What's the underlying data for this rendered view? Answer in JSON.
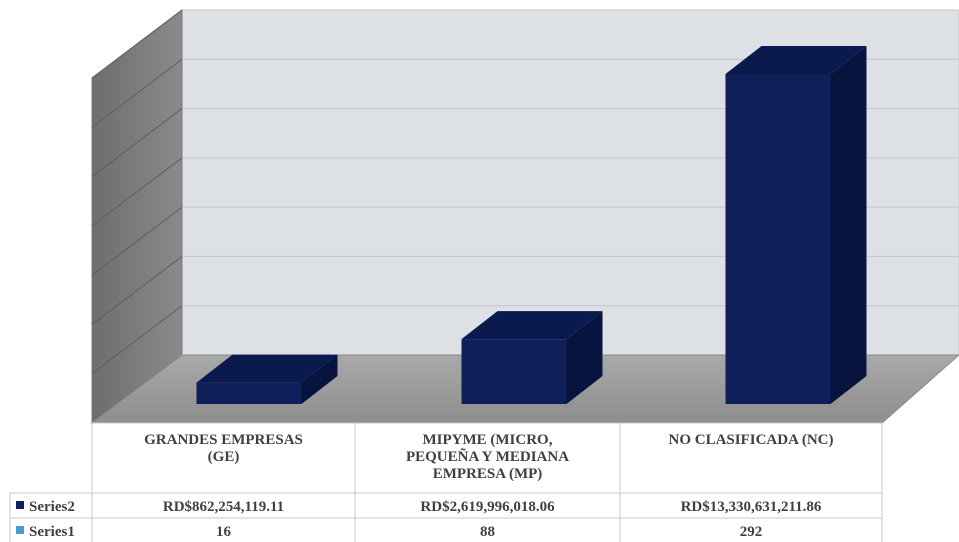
{
  "chart_data": {
    "type": "bar",
    "style": "3d-column-with-data-table",
    "categories": [
      "GRANDES EMPRESAS (GE)",
      "MIPYME (MICRO, PEQUEÑA Y MEDIANA EMPRESA (MP)",
      "NO CLASIFICADA (NC)"
    ],
    "category_lines": [
      [
        "GRANDES EMPRESAS",
        "(GE)"
      ],
      [
        "MIPYME (MICRO,",
        "PEQUEÑA Y MEDIANA",
        "EMPRESA (MP)"
      ],
      [
        "NO CLASIFICADA (NC)"
      ]
    ],
    "series": [
      {
        "name": "Series2",
        "values": [
          862254119.11,
          2619996018.06,
          13330631211.86
        ],
        "labels": [
          "RD$862,254,119.11",
          "RD$2,619,996,018.06",
          "RD$13,330,631,211.86"
        ],
        "color": "#0f1f5a"
      },
      {
        "name": "Series1",
        "values": [
          16,
          88,
          292
        ],
        "labels": [
          "16",
          "88",
          "292"
        ],
        "color": "#4a9ad6"
      }
    ],
    "plotted_series": "Series2",
    "ylim": [
      0,
      14000000000
    ],
    "grid": true,
    "legend": "data-table",
    "axis_labels_visible": false
  }
}
